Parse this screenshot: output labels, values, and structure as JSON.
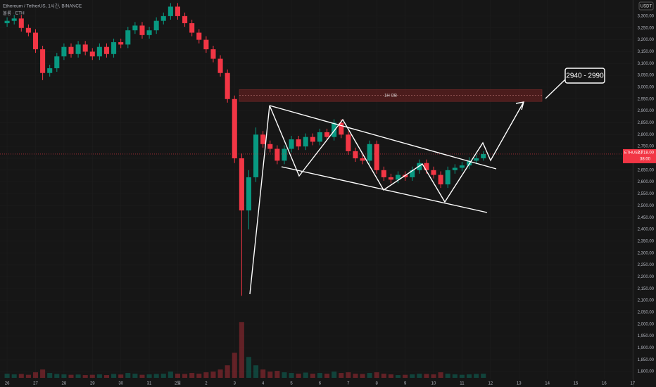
{
  "chart_data": {
    "type": "candlestick",
    "title": "Ethereum / TetherUS, 1시간, BINANCE",
    "subtitle": "볼륨 · ETH",
    "currency": "USDT",
    "up_color": "#089981",
    "down_color": "#f23645",
    "xlim": [
      -0.25,
      22.03
    ],
    "ylim": [
      1735,
      3368
    ],
    "volume_lim": [
      0,
      480
    ],
    "x": [
      0,
      0.25,
      0.5,
      0.75,
      1,
      1.25,
      1.5,
      1.75,
      2,
      2.25,
      2.5,
      2.75,
      3,
      3.25,
      3.5,
      3.75,
      4,
      4.25,
      4.5,
      4.75,
      5,
      5.25,
      5.5,
      5.75,
      6,
      6.25,
      6.5,
      6.75,
      7,
      7.25,
      7.5,
      7.75,
      8,
      8.25,
      8.5,
      8.75,
      9,
      9.25,
      9.5,
      9.75,
      10,
      10.25,
      10.5,
      10.75,
      11,
      11.25,
      11.5,
      11.75,
      12,
      12.25,
      12.5,
      12.75,
      13,
      13.25,
      13.5,
      13.75,
      14,
      14.25,
      14.5,
      14.75,
      15,
      15.25,
      15.5,
      15.75,
      16,
      16.25,
      16.5,
      16.75
    ],
    "open": [
      3270,
      3280,
      3290,
      3250,
      3230,
      3160,
      3060,
      3080,
      3130,
      3170,
      3140,
      3180,
      3150,
      3130,
      3170,
      3140,
      3190,
      3180,
      3240,
      3260,
      3220,
      3240,
      3280,
      3300,
      3340,
      3300,
      3270,
      3230,
      3200,
      3160,
      3120,
      3060,
      2950,
      2700,
      2480,
      2620,
      2800,
      2760,
      2740,
      2690,
      2740,
      2780,
      2750,
      2790,
      2770,
      2810,
      2790,
      2850,
      2800,
      2730,
      2700,
      2690,
      2760,
      2650,
      2620,
      2610,
      2630,
      2620,
      2650,
      2680,
      2650,
      2630,
      2590,
      2650,
      2660,
      2670,
      2690,
      2700
    ],
    "high": [
      3295,
      3305,
      3305,
      3265,
      3245,
      3175,
      3095,
      3145,
      3185,
      3185,
      3195,
      3195,
      3165,
      3185,
      3185,
      3205,
      3205,
      3255,
      3275,
      3275,
      3255,
      3295,
      3315,
      3355,
      3355,
      3315,
      3285,
      3245,
      3215,
      3175,
      3135,
      3075,
      2965,
      2720,
      2650,
      2830,
      2815,
      2775,
      2755,
      2755,
      2795,
      2795,
      2805,
      2805,
      2825,
      2825,
      2865,
      2865,
      2815,
      2745,
      2715,
      2775,
      2775,
      2665,
      2635,
      2645,
      2645,
      2665,
      2695,
      2695,
      2665,
      2645,
      2665,
      2675,
      2685,
      2705,
      2715,
      2730
    ],
    "low": [
      3255,
      3265,
      3235,
      3215,
      3145,
      3030,
      3045,
      3065,
      3115,
      3125,
      3125,
      3135,
      3115,
      3115,
      3125,
      3125,
      3165,
      3165,
      3225,
      3205,
      3205,
      3225,
      3265,
      3285,
      3285,
      3255,
      3215,
      3185,
      3145,
      3105,
      3045,
      2935,
      2680,
      2120,
      2400,
      2600,
      2745,
      2725,
      2675,
      2675,
      2725,
      2735,
      2735,
      2755,
      2755,
      2775,
      2775,
      2785,
      2715,
      2685,
      2675,
      2675,
      2635,
      2605,
      2595,
      2595,
      2605,
      2605,
      2635,
      2635,
      2615,
      2575,
      2575,
      2635,
      2645,
      2655,
      2675,
      2690
    ],
    "close": [
      3280,
      3290,
      3250,
      3230,
      3160,
      3060,
      3080,
      3130,
      3170,
      3140,
      3180,
      3150,
      3130,
      3170,
      3140,
      3190,
      3180,
      3240,
      3260,
      3220,
      3240,
      3280,
      3300,
      3340,
      3300,
      3270,
      3230,
      3200,
      3160,
      3120,
      3060,
      2950,
      2700,
      2480,
      2620,
      2800,
      2760,
      2740,
      2690,
      2740,
      2780,
      2750,
      2790,
      2770,
      2810,
      2790,
      2850,
      2800,
      2730,
      2700,
      2690,
      2760,
      2650,
      2620,
      2610,
      2630,
      2620,
      2650,
      2680,
      2650,
      2630,
      2590,
      2650,
      2660,
      2670,
      2690,
      2700,
      2718
    ],
    "volume": [
      30,
      25,
      28,
      22,
      40,
      60,
      35,
      28,
      25,
      22,
      24,
      20,
      22,
      25,
      20,
      28,
      24,
      35,
      30,
      22,
      25,
      28,
      30,
      45,
      30,
      28,
      35,
      30,
      40,
      45,
      60,
      90,
      180,
      400,
      150,
      90,
      60,
      45,
      50,
      40,
      35,
      30,
      38,
      30,
      35,
      30,
      45,
      35,
      40,
      30,
      28,
      35,
      40,
      30,
      25,
      20,
      22,
      25,
      30,
      28,
      25,
      40,
      30,
      25,
      22,
      25,
      28,
      30
    ],
    "xticks": [
      {
        "value": 0,
        "label": "26"
      },
      {
        "value": 1,
        "label": "27"
      },
      {
        "value": 2,
        "label": "28"
      },
      {
        "value": 3,
        "label": "29"
      },
      {
        "value": 4,
        "label": "30"
      },
      {
        "value": 5,
        "label": "31"
      },
      {
        "value": 6,
        "label": "2월"
      },
      {
        "value": 7,
        "label": "2"
      },
      {
        "value": 8,
        "label": "3"
      },
      {
        "value": 9,
        "label": "4"
      },
      {
        "value": 10,
        "label": "5"
      },
      {
        "value": 11,
        "label": "6"
      },
      {
        "value": 12,
        "label": "7"
      },
      {
        "value": 13,
        "label": "8"
      },
      {
        "value": 14,
        "label": "9"
      },
      {
        "value": 15,
        "label": "10"
      },
      {
        "value": 16,
        "label": "11"
      },
      {
        "value": 17,
        "label": "12"
      },
      {
        "value": 18,
        "label": "13"
      },
      {
        "value": 19,
        "label": "14"
      },
      {
        "value": 20,
        "label": "15"
      },
      {
        "value": 21,
        "label": "16"
      },
      {
        "value": 22,
        "label": "17"
      }
    ],
    "yticks": [
      {
        "value": 1800,
        "label": "1,800.00"
      },
      {
        "value": 1850,
        "label": "1,850.00"
      },
      {
        "value": 1900,
        "label": "1,900.00"
      },
      {
        "value": 1950,
        "label": "1,950.00"
      },
      {
        "value": 2000,
        "label": "2,000.00"
      },
      {
        "value": 2050,
        "label": "2,050.00"
      },
      {
        "value": 2100,
        "label": "2,100.00"
      },
      {
        "value": 2150,
        "label": "2,150.00"
      },
      {
        "value": 2200,
        "label": "2,200.00"
      },
      {
        "value": 2250,
        "label": "2,250.00"
      },
      {
        "value": 2300,
        "label": "2,300.00"
      },
      {
        "value": 2350,
        "label": "2,350.00"
      },
      {
        "value": 2400,
        "label": "2,400.00"
      },
      {
        "value": 2450,
        "label": "2,450.00"
      },
      {
        "value": 2500,
        "label": "2,500.00"
      },
      {
        "value": 2550,
        "label": "2,550.00"
      },
      {
        "value": 2600,
        "label": "2,600.00"
      },
      {
        "value": 2650,
        "label": "2,650.00"
      },
      {
        "value": 2700,
        "label": "2,700.00"
      },
      {
        "value": 2750,
        "label": "2,750.00"
      },
      {
        "value": 2800,
        "label": "2,800.00"
      },
      {
        "value": 2850,
        "label": "2,850.00"
      },
      {
        "value": 2900,
        "label": "2,900.00"
      },
      {
        "value": 2950,
        "label": "2,950.00"
      },
      {
        "value": 3000,
        "label": "3,000.00"
      },
      {
        "value": 3050,
        "label": "3,050.00"
      },
      {
        "value": 3100,
        "label": "3,100.00"
      },
      {
        "value": 3150,
        "label": "3,150.00"
      },
      {
        "value": 3200,
        "label": "3,200.00"
      },
      {
        "value": 3250,
        "label": "3,250.00"
      },
      {
        "value": 3300,
        "label": "3,300.00"
      }
    ],
    "zone": {
      "label": "1H OB",
      "low": 2940,
      "high": 2990
    },
    "target_label": "2940 - 2990",
    "last_price": {
      "symbol": "ETHUSDT",
      "value": 2718,
      "label": "2,718.00",
      "countdown": "38:00"
    }
  }
}
